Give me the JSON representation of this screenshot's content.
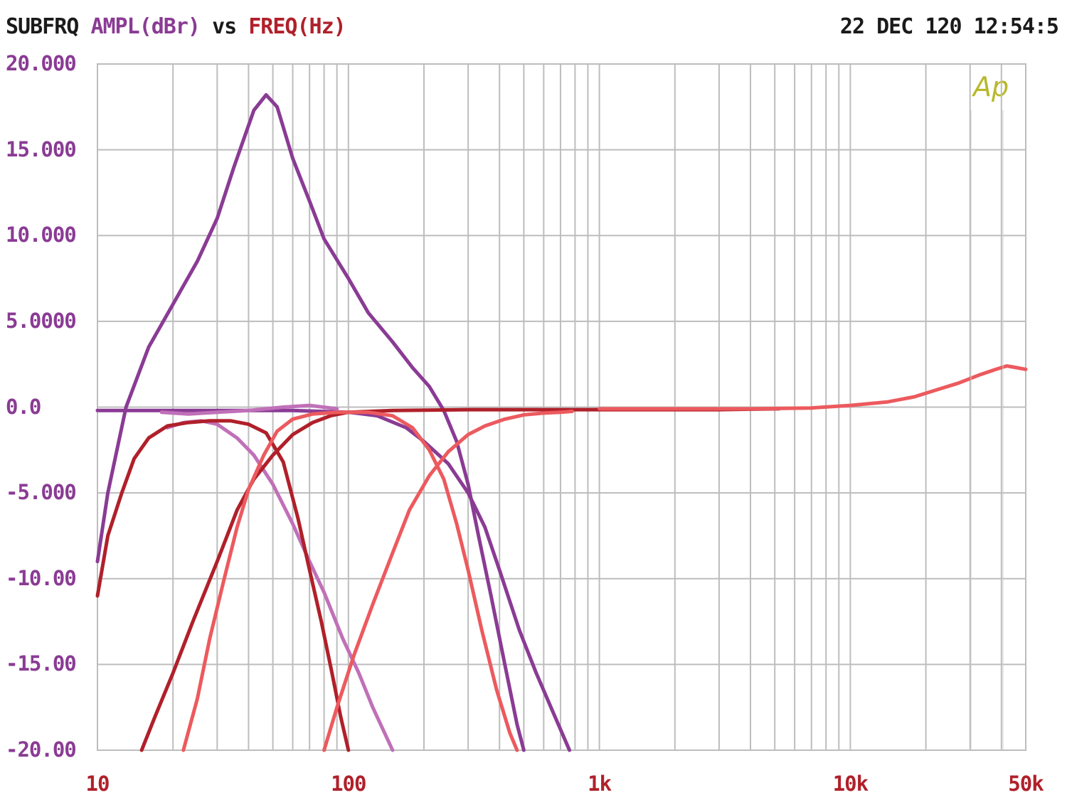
{
  "header": {
    "title_part1": "SUBFRQ",
    "title_part2": "AMPL(dBr)",
    "title_part3": "vs",
    "title_part4": "FREQ(Hz)",
    "timestamp": "22 DEC 120 12:54:5"
  },
  "logo": "Ap",
  "colors": {
    "grid": "#bdbdbd",
    "purple": "#8a3b94",
    "light_purple": "#c070b8",
    "dark_red": "#b0202a",
    "salmon": "#ec5a5e",
    "logo": "#b8b82a"
  },
  "chart_data": {
    "type": "line",
    "x_scale": "log",
    "xlim": [
      10,
      50000
    ],
    "ylim": [
      -20,
      20
    ],
    "grid": true,
    "y_ticks": [
      {
        "value": 20,
        "label": "20.000"
      },
      {
        "value": 15,
        "label": "15.000"
      },
      {
        "value": 10,
        "label": "10.000"
      },
      {
        "value": 5,
        "label": "5.0000"
      },
      {
        "value": 0,
        "label": "0.0"
      },
      {
        "value": -5,
        "label": "-5.000"
      },
      {
        "value": -10,
        "label": "-10.00"
      },
      {
        "value": -15,
        "label": "-15.00"
      },
      {
        "value": -20,
        "label": "-20.00"
      }
    ],
    "x_ticks": [
      {
        "value": 10,
        "label": "10"
      },
      {
        "value": 100,
        "label": "100"
      },
      {
        "value": 1000,
        "label": "1k"
      },
      {
        "value": 10000,
        "label": "10k"
      },
      {
        "value": 50000,
        "label": "50k"
      }
    ],
    "series": [
      {
        "color": "purple",
        "points": [
          [
            10,
            -9
          ],
          [
            11,
            -5
          ],
          [
            13,
            0
          ],
          [
            16,
            3.5
          ],
          [
            20,
            6
          ],
          [
            25,
            8.5
          ],
          [
            30,
            11
          ],
          [
            35,
            14
          ],
          [
            42,
            17.3
          ],
          [
            47,
            18.2
          ],
          [
            52,
            17.5
          ],
          [
            60,
            14.5
          ],
          [
            70,
            12
          ],
          [
            80,
            9.8
          ],
          [
            100,
            7.5
          ],
          [
            120,
            5.5
          ],
          [
            150,
            3.8
          ],
          [
            180,
            2.3
          ],
          [
            210,
            1.2
          ],
          [
            240,
            -0.2
          ],
          [
            270,
            -2
          ],
          [
            300,
            -4.5
          ],
          [
            330,
            -7.5
          ],
          [
            370,
            -11
          ],
          [
            420,
            -15
          ],
          [
            470,
            -18.5
          ],
          [
            500,
            -20
          ]
        ]
      },
      {
        "color": "purple",
        "points": [
          [
            10,
            -0.2
          ],
          [
            30,
            -0.2
          ],
          [
            60,
            -0.2
          ],
          [
            100,
            -0.3
          ],
          [
            130,
            -0.5
          ],
          [
            170,
            -1.2
          ],
          [
            200,
            -2
          ],
          [
            250,
            -3.3
          ],
          [
            300,
            -5
          ],
          [
            350,
            -7
          ],
          [
            400,
            -9.5
          ],
          [
            480,
            -13
          ],
          [
            560,
            -15.5
          ],
          [
            650,
            -17.7
          ],
          [
            760,
            -20
          ]
        ]
      },
      {
        "color": "light_purple",
        "points": [
          [
            19,
            -1.2
          ],
          [
            22,
            -0.9
          ],
          [
            26,
            -0.8
          ],
          [
            30,
            -1
          ],
          [
            36,
            -1.8
          ],
          [
            42,
            -2.8
          ],
          [
            50,
            -4.5
          ],
          [
            60,
            -6.8
          ],
          [
            70,
            -9
          ],
          [
            80,
            -10.8
          ],
          [
            95,
            -13.5
          ],
          [
            110,
            -15.5
          ],
          [
            125,
            -17.5
          ],
          [
            150,
            -20
          ]
        ]
      },
      {
        "color": "light_purple",
        "points": [
          [
            18,
            -0.3
          ],
          [
            23,
            -0.4
          ],
          [
            30,
            -0.3
          ],
          [
            40,
            -0.2
          ],
          [
            55,
            0
          ],
          [
            70,
            0.1
          ],
          [
            90,
            -0.1
          ]
        ]
      },
      {
        "color": "dark_red",
        "points": [
          [
            10,
            -11
          ],
          [
            11,
            -7.5
          ],
          [
            12.5,
            -5
          ],
          [
            14,
            -3
          ],
          [
            16,
            -1.8
          ],
          [
            19,
            -1.1
          ],
          [
            23,
            -0.9
          ],
          [
            28,
            -0.8
          ],
          [
            34,
            -0.8
          ],
          [
            40,
            -1
          ],
          [
            47,
            -1.5
          ],
          [
            55,
            -3.2
          ],
          [
            63,
            -6.5
          ],
          [
            70,
            -9.5
          ],
          [
            78,
            -12.5
          ],
          [
            86,
            -15.5
          ],
          [
            93,
            -18
          ],
          [
            100,
            -20
          ]
        ]
      },
      {
        "color": "dark_red",
        "points": [
          [
            15,
            -20
          ],
          [
            17,
            -18
          ],
          [
            20,
            -15.5
          ],
          [
            24,
            -12.5
          ],
          [
            30,
            -9
          ],
          [
            36,
            -6
          ],
          [
            42,
            -4.2
          ],
          [
            50,
            -2.8
          ],
          [
            60,
            -1.6
          ],
          [
            72,
            -0.9
          ],
          [
            85,
            -0.5
          ],
          [
            100,
            -0.3
          ],
          [
            150,
            -0.2
          ],
          [
            300,
            -0.15
          ],
          [
            1000,
            -0.15
          ]
        ]
      },
      {
        "color": "dark_red",
        "points": [
          [
            1000,
            -0.15
          ],
          [
            3000,
            -0.15
          ],
          [
            5000,
            -0.1
          ],
          [
            5200,
            -0.1
          ]
        ]
      },
      {
        "color": "salmon",
        "points": [
          [
            22,
            -20
          ],
          [
            25,
            -17
          ],
          [
            28,
            -13.5
          ],
          [
            32,
            -10
          ],
          [
            36,
            -7
          ],
          [
            40,
            -4.8
          ],
          [
            46,
            -2.8
          ],
          [
            52,
            -1.4
          ],
          [
            60,
            -0.7
          ],
          [
            72,
            -0.4
          ],
          [
            90,
            -0.3
          ],
          [
            120,
            -0.3
          ],
          [
            150,
            -0.5
          ],
          [
            180,
            -1.2
          ],
          [
            210,
            -2.5
          ],
          [
            240,
            -4.2
          ],
          [
            270,
            -6.8
          ],
          [
            300,
            -9.5
          ],
          [
            340,
            -13
          ],
          [
            390,
            -16.5
          ],
          [
            440,
            -19
          ],
          [
            470,
            -20
          ]
        ]
      },
      {
        "color": "salmon",
        "points": [
          [
            80,
            -20
          ],
          [
            90,
            -17.5
          ],
          [
            105,
            -14.5
          ],
          [
            125,
            -11.5
          ],
          [
            150,
            -8.5
          ],
          [
            175,
            -6
          ],
          [
            210,
            -4
          ],
          [
            250,
            -2.6
          ],
          [
            300,
            -1.6
          ],
          [
            350,
            -1.1
          ],
          [
            420,
            -0.7
          ],
          [
            500,
            -0.45
          ],
          [
            600,
            -0.35
          ],
          [
            700,
            -0.3
          ],
          [
            780,
            -0.25
          ]
        ]
      },
      {
        "color": "salmon",
        "points": [
          [
            1000,
            -0.1
          ],
          [
            2000,
            -0.1
          ],
          [
            4000,
            -0.1
          ],
          [
            7000,
            -0.05
          ],
          [
            10000,
            0.1
          ],
          [
            14000,
            0.3
          ],
          [
            18000,
            0.6
          ],
          [
            22000,
            1
          ],
          [
            27000,
            1.4
          ],
          [
            33000,
            1.9
          ],
          [
            38000,
            2.2
          ],
          [
            42000,
            2.4
          ],
          [
            46000,
            2.3
          ],
          [
            50000,
            2.2
          ]
        ]
      }
    ]
  }
}
